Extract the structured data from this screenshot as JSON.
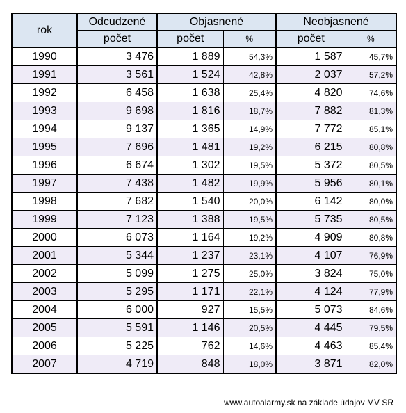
{
  "table": {
    "header": {
      "rok": "rok",
      "groups": [
        "Odcudzené",
        "Objasnené",
        "Neobjasnené"
      ],
      "subheaders": [
        "počet",
        "počet",
        "%",
        "počet",
        "%"
      ]
    },
    "rows": [
      [
        "1990",
        "3 476",
        "1 889",
        "54,3%",
        "1 587",
        "45,7%"
      ],
      [
        "1991",
        "3 561",
        "1 524",
        "42,8%",
        "2 037",
        "57,2%"
      ],
      [
        "1992",
        "6 458",
        "1 638",
        "25,4%",
        "4 820",
        "74,6%"
      ],
      [
        "1993",
        "9 698",
        "1 816",
        "18,7%",
        "7 882",
        "81,3%"
      ],
      [
        "1994",
        "9 137",
        "1 365",
        "14,9%",
        "7 772",
        "85,1%"
      ],
      [
        "1995",
        "7 696",
        "1 481",
        "19,2%",
        "6 215",
        "80,8%"
      ],
      [
        "1996",
        "6 674",
        "1 302",
        "19,5%",
        "5 372",
        "80,5%"
      ],
      [
        "1997",
        "7 438",
        "1 482",
        "19,9%",
        "5 956",
        "80,1%"
      ],
      [
        "1998",
        "7 682",
        "1 540",
        "20,0%",
        "6 142",
        "80,0%"
      ],
      [
        "1999",
        "7 123",
        "1 388",
        "19,5%",
        "5 735",
        "80,5%"
      ],
      [
        "2000",
        "6 073",
        "1 164",
        "19,2%",
        "4 909",
        "80,8%"
      ],
      [
        "2001",
        "5 344",
        "1 237",
        "23,1%",
        "4 107",
        "76,9%"
      ],
      [
        "2002",
        "5 099",
        "1 275",
        "25,0%",
        "3 824",
        "75,0%"
      ],
      [
        "2003",
        "5 295",
        "1 171",
        "22,1%",
        "4 124",
        "77,9%"
      ],
      [
        "2004",
        "6 000",
        "927",
        "15,5%",
        "5 073",
        "84,6%"
      ],
      [
        "2005",
        "5 591",
        "1 146",
        "20,5%",
        "4 445",
        "79,5%"
      ],
      [
        "2006",
        "5 225",
        "762",
        "14,6%",
        "4 463",
        "85,4%"
      ],
      [
        "2007",
        "4 719",
        "848",
        "18,0%",
        "3 871",
        "82,0%"
      ]
    ]
  },
  "footer": "www.autoalarmy.sk na základe údajov MV SR"
}
